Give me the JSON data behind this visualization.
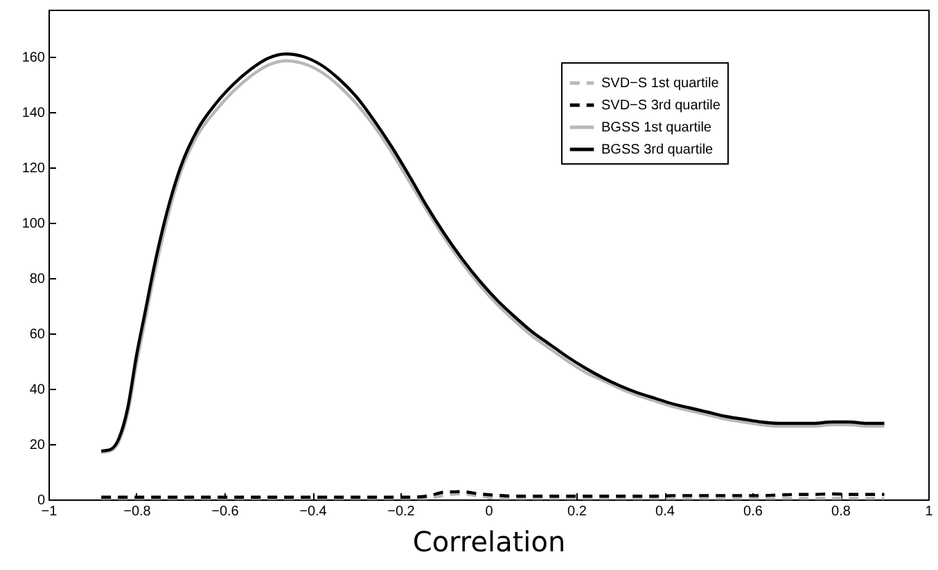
{
  "chart_data": {
    "type": "line",
    "xlabel": "Correlation",
    "xlim": [
      -1,
      1
    ],
    "xticks": [
      -1,
      -0.8,
      -0.6,
      -0.4,
      -0.2,
      0,
      0.2,
      0.4,
      0.6,
      0.8,
      1
    ],
    "ylim": [
      0,
      177
    ],
    "yticks": [
      0,
      20,
      40,
      60,
      80,
      100,
      120,
      140,
      160
    ],
    "grid": false,
    "legend": "top right",
    "x": [
      -0.88,
      -0.86,
      -0.84,
      -0.82,
      -0.8,
      -0.78,
      -0.76,
      -0.74,
      -0.72,
      -0.7,
      -0.66,
      -0.62,
      -0.58,
      -0.54,
      -0.5,
      -0.46,
      -0.42,
      -0.38,
      -0.34,
      -0.3,
      -0.26,
      -0.22,
      -0.18,
      -0.14,
      -0.1,
      -0.06,
      -0.02,
      0.02,
      0.06,
      0.1,
      0.14,
      0.18,
      0.22,
      0.26,
      0.3,
      0.34,
      0.38,
      0.42,
      0.46,
      0.5,
      0.54,
      0.58,
      0.62,
      0.66,
      0.7,
      0.74,
      0.78,
      0.82,
      0.86,
      0.9
    ],
    "series": [
      {
        "name": "SVD−S 1st quartile",
        "color": "#b8b8b8",
        "line_style": "dashed",
        "values": [
          0.4,
          0.4,
          0.4,
          0.4,
          0.4,
          0.4,
          0.4,
          0.4,
          0.4,
          0.4,
          0.4,
          0.4,
          0.4,
          0.4,
          0.4,
          0.4,
          0.4,
          0.4,
          0.4,
          0.4,
          0.4,
          0.4,
          0.4,
          0.4,
          1.5,
          2,
          1.2,
          0.4,
          0.4,
          0.4,
          0.4,
          0.4,
          0.4,
          0.4,
          0.4,
          0.4,
          0.4,
          0.4,
          0.4,
          0.4,
          0.4,
          0.4,
          0.4,
          0.4,
          0.4,
          0.4,
          0.4,
          0.4,
          0.4,
          0.4
        ]
      },
      {
        "name": "SVD−S 3rd quartile",
        "color": "#000000",
        "line_style": "dashed",
        "values": [
          0.8,
          0.8,
          0.8,
          0.8,
          0.8,
          0.8,
          0.8,
          0.8,
          0.8,
          0.8,
          0.8,
          0.8,
          0.8,
          0.8,
          0.8,
          0.8,
          0.8,
          0.8,
          0.8,
          0.8,
          0.8,
          0.8,
          0.8,
          1.2,
          2.6,
          2.8,
          2,
          1.5,
          1.2,
          1.2,
          1.2,
          1.2,
          1.2,
          1.2,
          1.2,
          1.2,
          1.2,
          1.4,
          1.4,
          1.4,
          1.4,
          1.4,
          1.4,
          1.6,
          1.8,
          1.8,
          2,
          1.8,
          1.8,
          1.8
        ]
      },
      {
        "name": "BGSS 1st quartile",
        "color": "#b8b8b8",
        "line_style": "solid",
        "values": [
          17,
          17.5,
          21,
          31,
          49,
          65,
          81,
          95,
          107.5,
          118,
          132,
          140.5,
          147.5,
          153,
          157,
          158.5,
          157.5,
          154.5,
          149.5,
          143,
          135,
          125.5,
          115,
          104.5,
          94.5,
          85.5,
          77.5,
          70.5,
          64.5,
          59,
          54.5,
          50,
          46,
          43,
          40,
          37.5,
          35.5,
          33.5,
          32,
          30.5,
          29,
          28,
          27,
          26.5,
          26.5,
          26.5,
          27,
          27,
          26.5,
          26.5
        ]
      },
      {
        "name": "BGSS 3rd quartile",
        "color": "#000000",
        "line_style": "solid",
        "values": [
          17.5,
          18,
          22,
          33,
          52,
          68,
          84,
          98,
          110,
          120,
          134,
          143,
          150,
          155.5,
          159.5,
          161,
          160,
          157,
          152,
          145.5,
          137,
          127.5,
          117,
          106,
          96,
          87,
          79,
          72,
          66,
          60.5,
          56,
          51.5,
          47.5,
          44,
          41,
          38.5,
          36.5,
          34.5,
          33,
          31.5,
          30,
          29,
          28,
          27.5,
          27.5,
          27.5,
          28,
          28,
          27.5,
          27.5
        ]
      }
    ]
  }
}
